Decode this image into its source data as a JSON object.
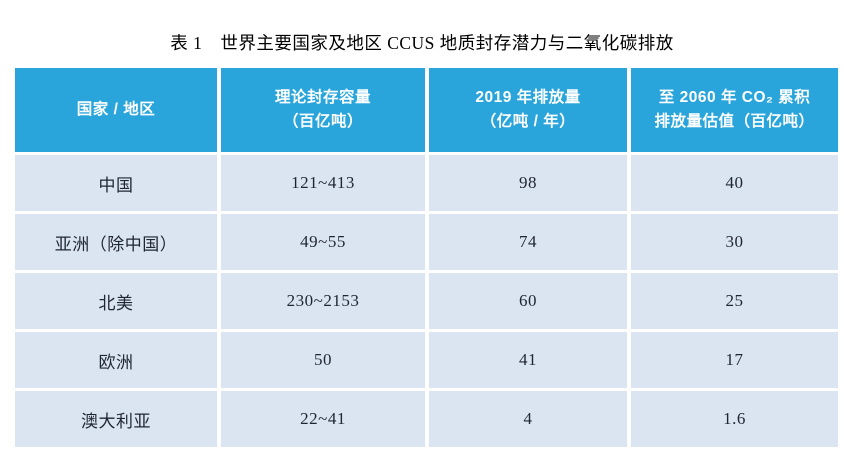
{
  "title": "表 1　世界主要国家及地区 CCUS 地质封存潜力与二氧化碳排放",
  "chart_data": {
    "type": "table",
    "title": "表 1　世界主要国家及地区 CCUS 地质封存潜力与二氧化碳排放",
    "columns": [
      {
        "line1": "国家 / 地区",
        "line2": ""
      },
      {
        "line1": "理论封存容量",
        "line2": "（百亿吨）"
      },
      {
        "line1": "2019 年排放量",
        "line2": "（亿吨 / 年）"
      },
      {
        "line1": "至 2060 年 CO₂ 累积",
        "line2": "排放量估值（百亿吨）"
      }
    ],
    "column_semantics": [
      "country_or_region",
      "theoretical_storage_capacity_10_billion_tons",
      "emissions_2019_100_million_tons_per_year",
      "estimated_cumulative_co2_emissions_to_2060_10_billion_tons"
    ],
    "rows": [
      [
        "中国",
        "121~413",
        "98",
        "40"
      ],
      [
        "亚洲（除中国）",
        "49~55",
        "74",
        "30"
      ],
      [
        "北美",
        "230~2153",
        "60",
        "25"
      ],
      [
        "欧洲",
        "50",
        "41",
        "17"
      ],
      [
        "澳大利亚",
        "22~41",
        "4",
        "1.6"
      ]
    ]
  },
  "colors": {
    "header_bg": "#29A5DC",
    "header_text": "#FFFFFF",
    "row_bg": "#DBE4F1",
    "cell_text": "#1E2633",
    "grid_gap": "#FFFFFF",
    "page_bg": "#FFFFFF",
    "title_text": "#000000"
  }
}
